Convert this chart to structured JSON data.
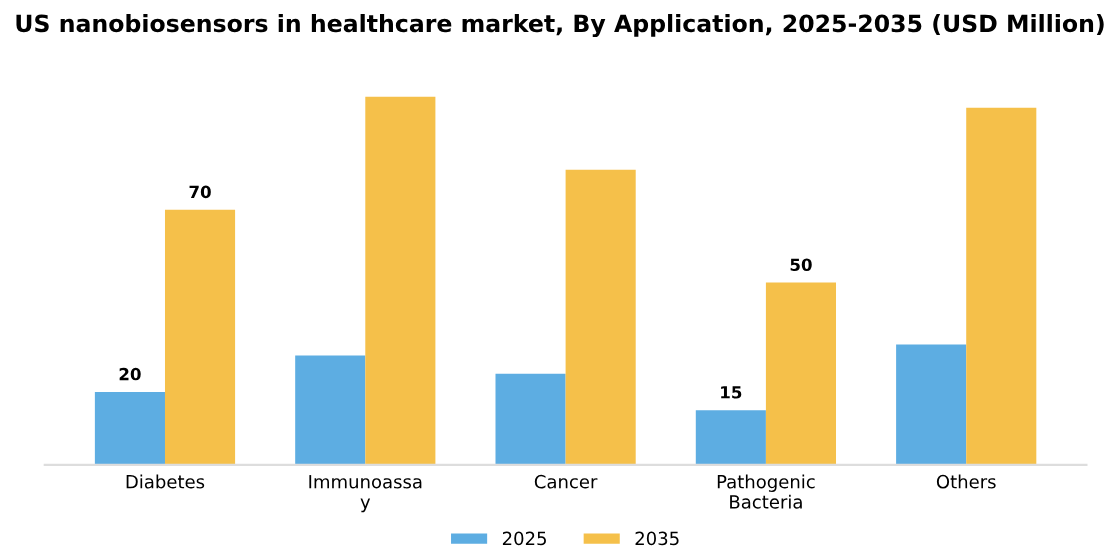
{
  "chart_data": {
    "type": "bar",
    "title": "US nanobiosensors in healthcare market, By Application, 2025-2035 (USD Million)",
    "categories": [
      "Diabetes",
      "Immunoassay",
      "Cancer",
      "Pathogenic Bacteria",
      "Others"
    ],
    "series": [
      {
        "name": "2025",
        "color": "#5dade2",
        "values": [
          20,
          30,
          25,
          15,
          33
        ],
        "value_labels": [
          "20",
          null,
          null,
          "15",
          null
        ]
      },
      {
        "name": "2035",
        "color": "#f5c04a",
        "values": [
          70,
          101,
          81,
          50,
          98
        ],
        "value_labels": [
          "70",
          null,
          null,
          "50",
          null
        ]
      }
    ],
    "tick_labels": "x",
    "grid": false,
    "legend": "bottom"
  }
}
